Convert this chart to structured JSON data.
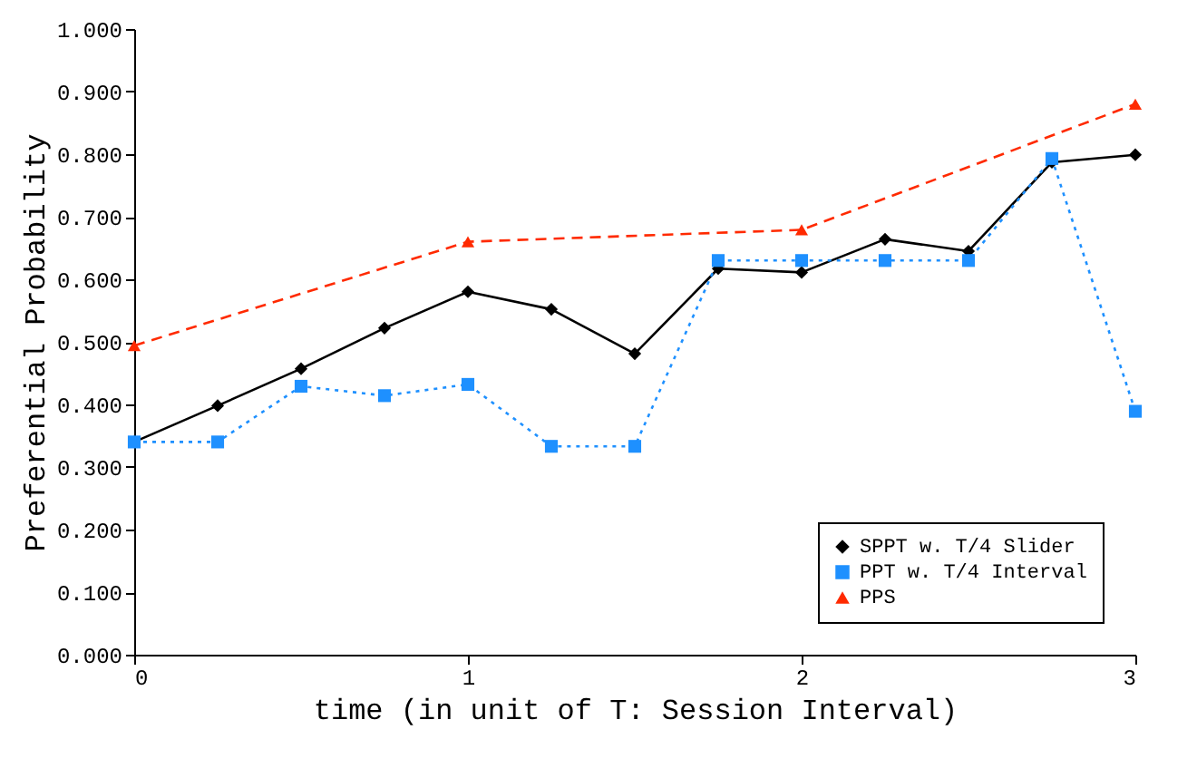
{
  "chart_data": {
    "type": "line",
    "xlabel": "time (in unit of T: Session Interval)",
    "ylabel": "Preferential Probability",
    "xlim": [
      0,
      3
    ],
    "xticks": [
      0,
      1,
      2,
      3
    ],
    "ylim": [
      0,
      1
    ],
    "yticks": [
      {
        "value": 0,
        "label": "0.000"
      },
      {
        "value": 0.1,
        "label": "0.100"
      },
      {
        "value": 0.2,
        "label": "0.200"
      },
      {
        "value": 0.3,
        "label": "0.300"
      },
      {
        "value": 0.4,
        "label": "0.400"
      },
      {
        "value": 0.5,
        "label": "0.500"
      },
      {
        "value": 0.6,
        "label": "0.600"
      },
      {
        "value": 0.7,
        "label": "0.700"
      },
      {
        "value": 0.8,
        "label": "0.800"
      },
      {
        "value": 0.9,
        "label": "0.900"
      },
      {
        "value": 1,
        "label": "1.000"
      }
    ],
    "grid": false,
    "legend": "bottom right",
    "series": [
      {
        "name": "SPPT w. T/4 Slider",
        "color": "#000000",
        "marker": "diamond",
        "line_style": "solid",
        "x": [
          0,
          0.25,
          0.5,
          0.75,
          1,
          1.25,
          1.5,
          1.75,
          2,
          2.25,
          2.5,
          2.75,
          3
        ],
        "values": [
          0.34,
          0.398,
          0.457,
          0.522,
          0.58,
          0.552,
          0.481,
          0.617,
          0.611,
          0.664,
          0.645,
          0.787,
          0.799
        ]
      },
      {
        "name": "PPT w. T/4 Interval",
        "color": "#1e90ff",
        "marker": "square",
        "line_style": "dotted",
        "x": [
          0,
          0.25,
          0.5,
          0.75,
          1,
          1.25,
          1.5,
          1.75,
          2,
          2.25,
          2.5,
          2.75,
          3
        ],
        "values": [
          0.34,
          0.34,
          0.429,
          0.414,
          0.432,
          0.333,
          0.333,
          0.63,
          0.63,
          0.63,
          0.63,
          0.793,
          0.389
        ]
      },
      {
        "name": "PPS",
        "color": "#ff2a00",
        "marker": "triangle",
        "line_style": "dashed",
        "x": [
          0,
          1,
          2,
          3
        ],
        "values": [
          0.494,
          0.66,
          0.679,
          0.88
        ]
      }
    ]
  }
}
